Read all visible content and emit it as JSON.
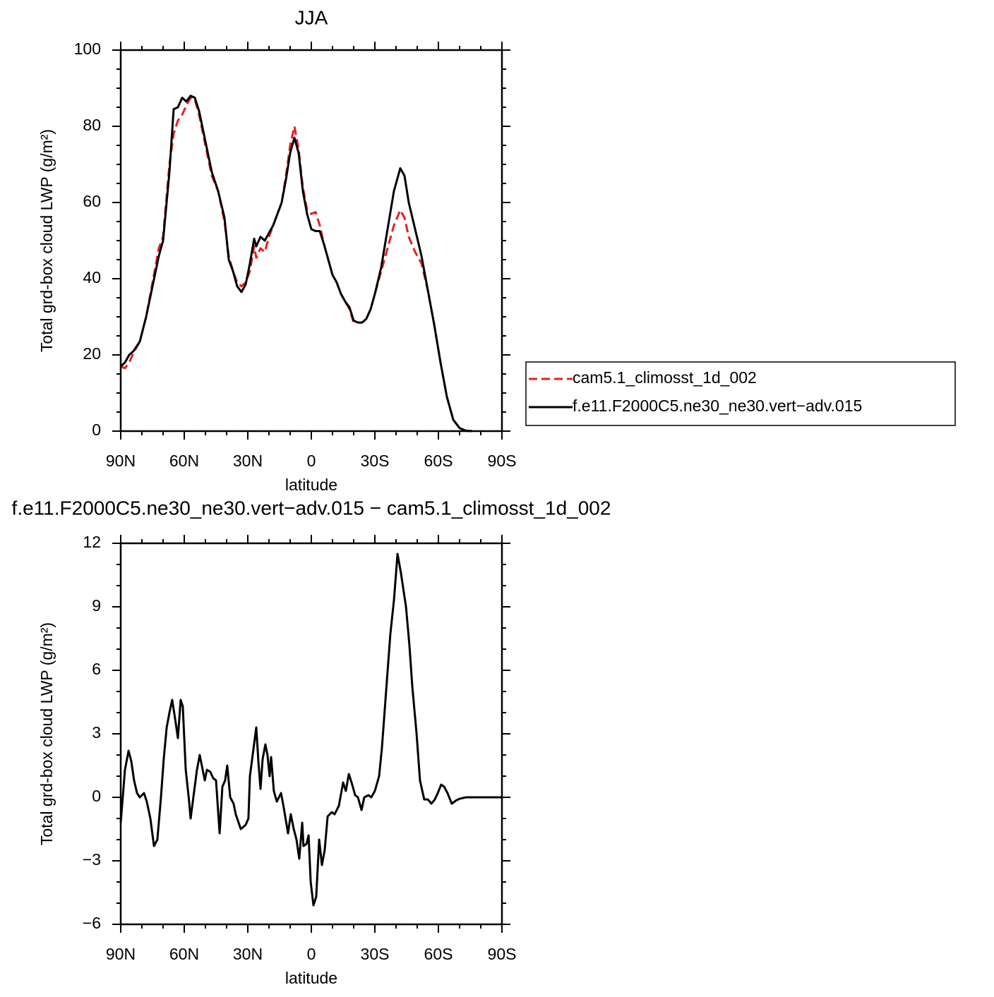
{
  "chart_data": [
    {
      "type": "line",
      "title": "JJA",
      "xlabel": "latitude",
      "ylabel": "Total grd-box cloud LWP (g/m²)",
      "xlim": [
        90,
        -90
      ],
      "xticks": [
        {
          "value": 90,
          "label": "90N"
        },
        {
          "value": 60,
          "label": "60N"
        },
        {
          "value": 30,
          "label": "30N"
        },
        {
          "value": 0,
          "label": "0"
        },
        {
          "value": -30,
          "label": "30S"
        },
        {
          "value": -60,
          "label": "60S"
        },
        {
          "value": -90,
          "label": "90S"
        }
      ],
      "ylim": [
        0,
        100
      ],
      "yticks": [
        0,
        20,
        40,
        60,
        80,
        100
      ],
      "legend": "right",
      "x": [
        90,
        88,
        86,
        84,
        81,
        78,
        75,
        72,
        70,
        67,
        65,
        63,
        61,
        59,
        57,
        55,
        53,
        50,
        47,
        44,
        41,
        39,
        37,
        35,
        33,
        31,
        29,
        27,
        26,
        24,
        22,
        20,
        18,
        16,
        14,
        12,
        10,
        8,
        6,
        4,
        2,
        0,
        -2,
        -4,
        -6,
        -8,
        -10,
        -12,
        -14,
        -16,
        -18,
        -20,
        -22,
        -24,
        -26,
        -28,
        -30,
        -33,
        -36,
        -39,
        -42,
        -44,
        -46,
        -49,
        -52,
        -55,
        -58,
        -61,
        -64,
        -67,
        -70,
        -73,
        -76
      ],
      "series": [
        {
          "name": "cam5.1_climosst_1d_002",
          "color": "#e8201c",
          "dashed": true,
          "values": [
            17,
            16.5,
            18,
            20.5,
            23.5,
            30,
            39,
            48,
            51,
            70,
            78,
            81.5,
            83,
            85.5,
            87.5,
            87,
            83,
            75,
            67,
            63,
            55,
            46,
            42,
            39,
            38,
            39,
            42,
            48.5,
            45.5,
            48,
            47,
            51,
            54,
            57,
            60,
            67,
            75,
            80,
            74,
            64,
            58,
            57,
            57.5,
            54,
            49,
            45,
            41,
            39,
            36,
            34,
            32,
            28.5,
            28.5,
            28.5,
            29.5,
            32,
            36,
            42,
            48,
            54,
            58,
            56,
            51,
            47,
            44,
            37,
            28,
            18,
            9,
            3,
            0.8,
            0.1,
            0
          ]
        },
        {
          "name": "f.e11.F2000C5.ne30_ne30.vert−adv.015",
          "color": "#000000",
          "dashed": false,
          "values": [
            17,
            18,
            20,
            21,
            23.5,
            30,
            38,
            46,
            50,
            68,
            84.5,
            85,
            87.5,
            86.5,
            88,
            87.5,
            84,
            76,
            68,
            63,
            56,
            45,
            42,
            38,
            36.5,
            38.5,
            44,
            50.5,
            48.5,
            51,
            50,
            52,
            54,
            57,
            60,
            66,
            73,
            77,
            73,
            63,
            57,
            53,
            52.5,
            52.5,
            49,
            45,
            41,
            39,
            36,
            34,
            32.5,
            29,
            28.5,
            28.5,
            29.5,
            32,
            36,
            43,
            53,
            63,
            69,
            67,
            60,
            53,
            46,
            37,
            28,
            18,
            9,
            3,
            0.8,
            0.1,
            0
          ]
        }
      ]
    },
    {
      "type": "line",
      "title": "f.e11.F2000C5.ne30_ne30.vert−adv.015 − cam5.1_climosst_1d_002",
      "xlabel": "latitude",
      "ylabel": "Total grd-box cloud LWP (g/m²)",
      "xlim": [
        90,
        -90
      ],
      "xticks": [
        {
          "value": 90,
          "label": "90N"
        },
        {
          "value": 60,
          "label": "60N"
        },
        {
          "value": 30,
          "label": "30N"
        },
        {
          "value": 0,
          "label": "0"
        },
        {
          "value": -30,
          "label": "30S"
        },
        {
          "value": -60,
          "label": "60S"
        },
        {
          "value": -90,
          "label": "90S"
        }
      ],
      "ylim": [
        -6,
        12
      ],
      "yticks": [
        {
          "value": -6,
          "label": "−6"
        },
        {
          "value": -3,
          "label": "−3"
        },
        0,
        3,
        6,
        9,
        12
      ],
      "x": [
        90,
        88,
        86.3,
        85,
        83.7,
        82.3,
        81,
        79,
        77.7,
        76,
        74.3,
        72.7,
        71,
        69.7,
        68.3,
        67,
        65.7,
        64.3,
        63,
        61.7,
        60.7,
        59.3,
        57.7,
        57,
        55.7,
        54,
        52.7,
        51.7,
        50.3,
        49.3,
        47.7,
        46.3,
        45,
        43.3,
        42,
        40.7,
        39.7,
        38.3,
        36.7,
        35.7,
        33.3,
        31,
        29.7,
        29,
        27.3,
        26,
        25,
        24,
        23,
        21.7,
        20.7,
        19.7,
        19,
        17.7,
        16.3,
        14.3,
        13,
        11,
        9.7,
        8.3,
        7,
        5.7,
        4.3,
        3.7,
        2.3,
        1.3,
        0.3,
        -1,
        -2.3,
        -3.7,
        -5,
        -6.3,
        -7.7,
        -9.7,
        -11,
        -13,
        -15,
        -16.3,
        -17.7,
        -19,
        -20.7,
        -22,
        -23.7,
        -25,
        -27,
        -28.3,
        -30,
        -32,
        -33.3,
        -35.3,
        -37.3,
        -39,
        -40.7,
        -42.3,
        -44.7,
        -46.3,
        -47.7,
        -49.7,
        -51.3,
        -53.3,
        -55,
        -56.7,
        -58.3,
        -59.7,
        -61.3,
        -62.7,
        -64.3,
        -66.3,
        -68.3,
        -70,
        -73,
        -79.7,
        -90
      ],
      "series": [
        {
          "name": "f.e11.F2000C5.ne30_ne30.vert−adv.015 − cam5.1_climosst_1d_002",
          "color": "#000000",
          "dashed": false,
          "values": [
            -1.2,
            1.3,
            2.2,
            1.7,
            0.8,
            0.2,
            0,
            0.2,
            -0.2,
            -1,
            -2.3,
            -2,
            0,
            1.8,
            3.3,
            4,
            4.6,
            3.7,
            2.8,
            4.6,
            4.3,
            1.3,
            -0.2,
            -1,
            0,
            1.3,
            2,
            1.5,
            0.8,
            1.3,
            1.2,
            0.9,
            0.8,
            -1.7,
            0.5,
            0.8,
            1.5,
            0,
            -0.3,
            -0.8,
            -1.5,
            -1.3,
            -1,
            1,
            2.3,
            3.3,
            1.7,
            0.4,
            1.8,
            2.5,
            2,
            1,
            1.9,
            0.3,
            -0.2,
            0.2,
            -0.5,
            -1.7,
            -0.8,
            -1.5,
            -2,
            -2.9,
            -1.2,
            -2.3,
            -2.2,
            -1.8,
            -4,
            -5.1,
            -4.7,
            -2,
            -3.2,
            -2.5,
            -0.9,
            -0.7,
            -0.8,
            -0.4,
            0.7,
            0.3,
            1.1,
            0.7,
            0.1,
            0,
            -0.6,
            0,
            0.1,
            0,
            0.3,
            1,
            2.3,
            5,
            7.7,
            9.3,
            11.5,
            10.6,
            9,
            7.2,
            5.2,
            3,
            0.8,
            -0.1,
            -0.1,
            -0.3,
            -0.1,
            0.2,
            0.6,
            0.5,
            0.2,
            -0.3,
            -0.15,
            -0.07,
            0,
            0,
            0
          ]
        }
      ]
    }
  ]
}
